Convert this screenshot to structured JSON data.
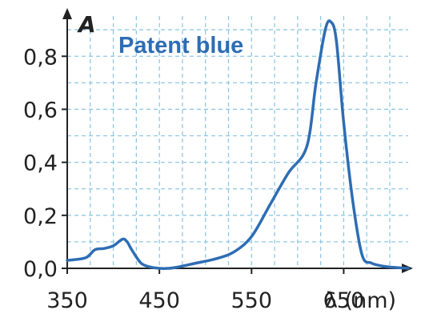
{
  "chart_data": {
    "type": "line",
    "title": "",
    "xlabel": "λ (nm)",
    "ylabel": "A",
    "xlim": [
      350,
      720
    ],
    "ylim": [
      0,
      0.97
    ],
    "grid": true,
    "x_ticks": [
      350,
      450,
      550,
      650
    ],
    "x_tick_labels": [
      "350",
      "450",
      "550",
      "650"
    ],
    "y_ticks": [
      0.0,
      0.2,
      0.4,
      0.6,
      0.8
    ],
    "y_tick_labels": [
      "0,0",
      "0,2",
      "0,4",
      "0,6",
      "0,8"
    ],
    "series": [
      {
        "name": "Patent blue",
        "color": "#2e6db3",
        "x": [
          350,
          370,
          380,
          390,
          400,
          410,
          415,
          420,
          430,
          440,
          450,
          460,
          470,
          490,
          510,
          530,
          550,
          570,
          590,
          610,
          620,
          630,
          636,
          642,
          650,
          660,
          670,
          680,
          690,
          700,
          720
        ],
        "y": [
          0.03,
          0.04,
          0.07,
          0.075,
          0.085,
          0.11,
          0.1,
          0.07,
          0.02,
          0.005,
          0.0,
          0.0,
          0.005,
          0.02,
          0.035,
          0.06,
          0.12,
          0.24,
          0.36,
          0.46,
          0.7,
          0.9,
          0.93,
          0.86,
          0.55,
          0.25,
          0.05,
          0.02,
          0.01,
          0.005,
          0.0
        ]
      }
    ]
  }
}
